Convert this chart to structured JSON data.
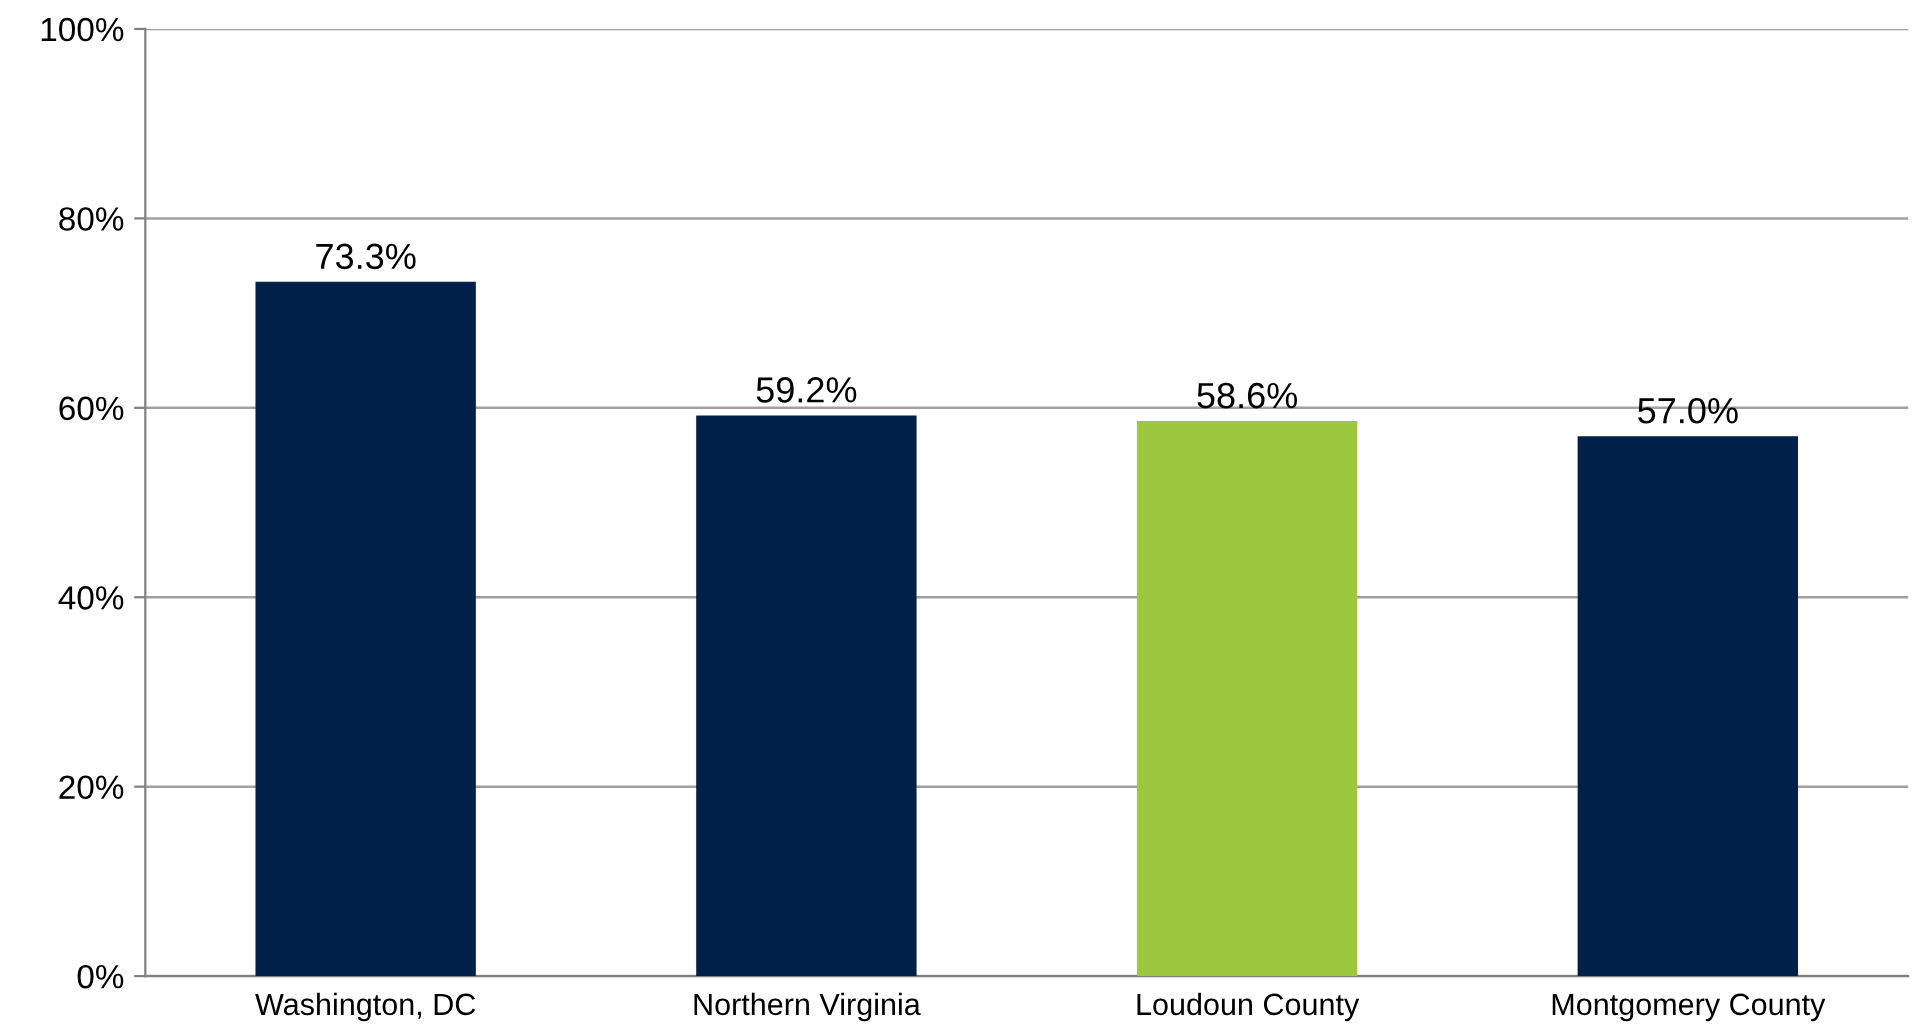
{
  "chart_data": {
    "type": "bar",
    "categories": [
      "Washington, DC",
      "Northern Virginia",
      "Loudoun County",
      "Montgomery County"
    ],
    "values": [
      73.3,
      59.2,
      58.6,
      57.0
    ],
    "colors": [
      "#00204a",
      "#00204a",
      "#9dc73f",
      "#00204a"
    ],
    "value_labels": [
      "73.3%",
      "59.2%",
      "58.6%",
      "57.0%"
    ],
    "ylim": [
      0,
      100
    ],
    "yticks": [
      {
        "value": 0,
        "label": "0%"
      },
      {
        "value": 20,
        "label": "20%"
      },
      {
        "value": 40,
        "label": "40%"
      },
      {
        "value": 60,
        "label": "60%"
      },
      {
        "value": 80,
        "label": "80%"
      },
      {
        "value": 100,
        "label": "100%"
      }
    ],
    "grid": "y",
    "legend": false
  }
}
